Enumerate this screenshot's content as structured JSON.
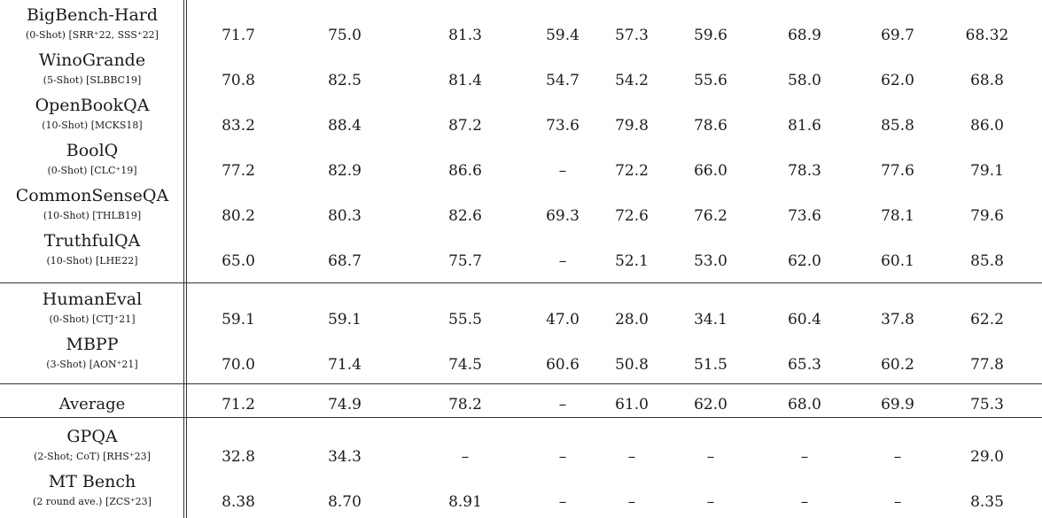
{
  "groups": [
    {
      "top": 0,
      "rows": [
        {
          "name": "BigBench-Hard",
          "setting": "(0-Shot) [SRR⁺22, SSS⁺22]",
          "values": [
            "71.7",
            "75.0",
            "81.3",
            "59.4",
            "57.3",
            "59.6",
            "68.9",
            "69.7",
            "68.32"
          ]
        },
        {
          "name": "WinoGrande",
          "setting": "(5-Shot) [SLBBC19]",
          "values": [
            "70.8",
            "82.5",
            "81.4",
            "54.7",
            "54.2",
            "55.6",
            "58.0",
            "62.0",
            "68.8"
          ]
        },
        {
          "name": "OpenBookQA",
          "setting": "(10-Shot) [MCKS18]",
          "values": [
            "83.2",
            "88.4",
            "87.2",
            "73.6",
            "79.8",
            "78.6",
            "81.6",
            "85.8",
            "86.0"
          ]
        },
        {
          "name": "BoolQ",
          "setting": "(0-Shot) [CLC⁺19]",
          "values": [
            "77.2",
            "82.9",
            "86.6",
            "–",
            "72.2",
            "66.0",
            "78.3",
            "77.6",
            "79.1"
          ]
        },
        {
          "name": "CommonSenseQA",
          "setting": "(10-Shot) [THLB19]",
          "values": [
            "80.2",
            "80.3",
            "82.6",
            "69.3",
            "72.6",
            "76.2",
            "73.6",
            "78.1",
            "79.6"
          ]
        },
        {
          "name": "TruthfulQA",
          "setting": "(10-Shot) [LHE22]",
          "values": [
            "65.0",
            "68.7",
            "75.7",
            "–",
            "52.1",
            "53.0",
            "62.0",
            "60.1",
            "85.8"
          ]
        }
      ]
    },
    {
      "top": 1,
      "rows": [
        {
          "name": "HumanEval",
          "setting": "(0-Shot) [CTJ⁺21]",
          "values": [
            "59.1",
            "59.1",
            "55.5",
            "47.0",
            "28.0",
            "34.1",
            "60.4",
            "37.8",
            "62.2"
          ]
        },
        {
          "name": "MBPP",
          "setting": "(3-Shot) [AON⁺21]",
          "values": [
            "70.0",
            "71.4",
            "74.5",
            "60.6",
            "50.8",
            "51.5",
            "65.3",
            "60.2",
            "77.8"
          ]
        }
      ]
    }
  ],
  "average": {
    "label": "Average",
    "values": [
      "71.2",
      "74.9",
      "78.2",
      "–",
      "61.0",
      "62.0",
      "68.0",
      "69.9",
      "75.3"
    ]
  },
  "extra_rows": [
    {
      "name": "GPQA",
      "setting": "(2-Shot; CoT) [RHS⁺23]",
      "values": [
        "32.8",
        "34.3",
        "–",
        "–",
        "–",
        "–",
        "–",
        "–",
        "29.0"
      ]
    },
    {
      "name": "MT Bench",
      "setting": "(2 round ave.) [ZCS⁺23]",
      "values": [
        "8.38",
        "8.70",
        "8.91",
        "–",
        "–",
        "–",
        "–",
        "–",
        "8.35"
      ]
    }
  ]
}
